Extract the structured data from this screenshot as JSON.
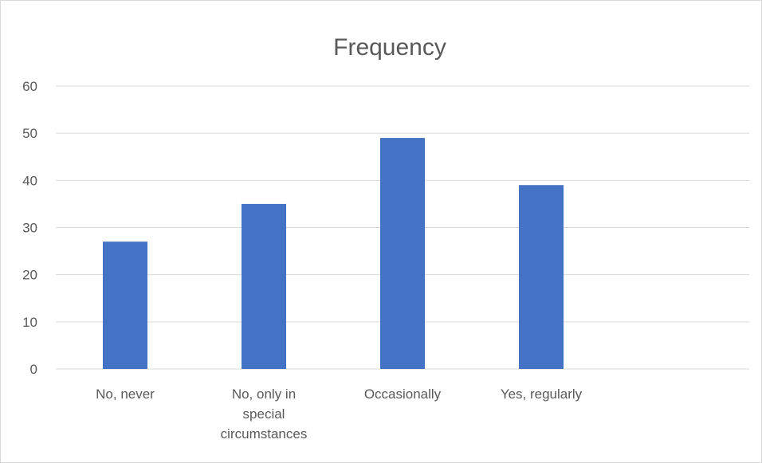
{
  "chart_data": {
    "type": "bar",
    "title": "Frequency",
    "xlabel": "",
    "ylabel": "",
    "categories": [
      "No, never",
      "No, only in special circumstances",
      "Occasionally",
      "Yes, regularly"
    ],
    "category_label_lines": [
      [
        "No, never"
      ],
      [
        "No, only in",
        "special",
        "circumstances"
      ],
      [
        "Occasionally"
      ],
      [
        "Yes, regularly"
      ]
    ],
    "values": [
      27,
      35,
      49,
      39
    ],
    "ylim": [
      0,
      60
    ],
    "yticks": [
      "0",
      "10",
      "20",
      "30",
      "40",
      "50",
      "60"
    ],
    "grid": true,
    "legend": "none",
    "bar_color": "#4472C4"
  }
}
